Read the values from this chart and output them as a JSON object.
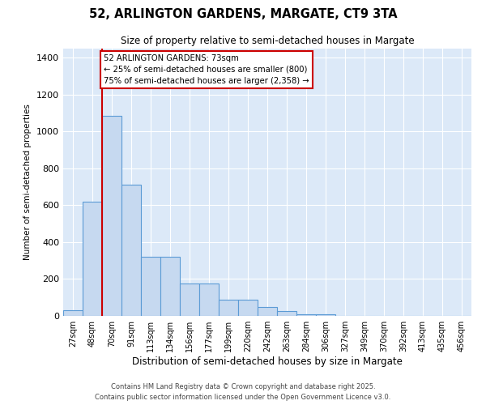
{
  "title_line1": "52, ARLINGTON GARDENS, MARGATE, CT9 3TA",
  "title_line2": "Size of property relative to semi-detached houses in Margate",
  "xlabel": "Distribution of semi-detached houses by size in Margate",
  "ylabel": "Number of semi-detached properties",
  "categories": [
    "27sqm",
    "48sqm",
    "70sqm",
    "91sqm",
    "113sqm",
    "134sqm",
    "156sqm",
    "177sqm",
    "199sqm",
    "220sqm",
    "242sqm",
    "263sqm",
    "284sqm",
    "306sqm",
    "327sqm",
    "349sqm",
    "370sqm",
    "392sqm",
    "413sqm",
    "435sqm",
    "456sqm"
  ],
  "values": [
    30,
    620,
    1085,
    710,
    320,
    320,
    175,
    175,
    90,
    90,
    47,
    25,
    10,
    10,
    0,
    0,
    0,
    0,
    0,
    0,
    0
  ],
  "bar_color": "#c6d9f0",
  "bar_edge_color": "#5b9bd5",
  "annotation_text": "52 ARLINGTON GARDENS: 73sqm\n← 25% of semi-detached houses are smaller (800)\n75% of semi-detached houses are larger (2,358) →",
  "annotation_box_color": "#ffffff",
  "annotation_box_edge": "#cc0000",
  "vline_color": "#cc0000",
  "ylim": [
    0,
    1450
  ],
  "yticks": [
    0,
    200,
    400,
    600,
    800,
    1000,
    1200,
    1400
  ],
  "footer_line1": "Contains HM Land Registry data © Crown copyright and database right 2025.",
  "footer_line2": "Contains public sector information licensed under the Open Government Licence v3.0.",
  "bg_color": "#ffffff",
  "plot_bg_color": "#dce9f8",
  "grid_color": "#ffffff"
}
